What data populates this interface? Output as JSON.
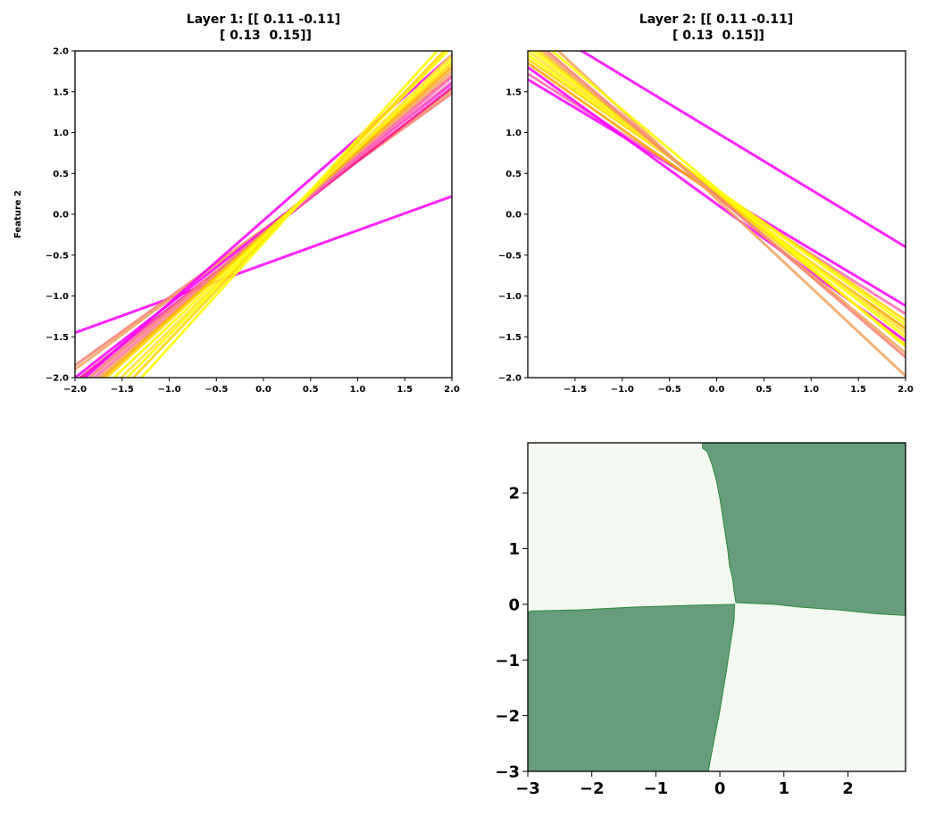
{
  "chart_data": [
    {
      "type": "line",
      "title_line1": "Layer 1: [[ 0.11 -0.11]",
      "title_line2": " [ 0.13  0.15]]",
      "xlabel": "",
      "ylabel": "Feature 2",
      "xlim": [
        -2,
        2
      ],
      "ylim": [
        -2,
        2
      ],
      "xticks": [
        "−2.0",
        "−1.5",
        "−1.0",
        "−0.5",
        "0.0",
        "0.5",
        "1.0",
        "1.5",
        "2.0"
      ],
      "xtick_values": [
        -2,
        -1.5,
        -1,
        -0.5,
        0,
        0.5,
        1,
        1.5,
        2
      ],
      "yticks": [
        "−2.0",
        "−1.5",
        "−1.0",
        "−0.5",
        "0.0",
        "0.5",
        "1.0",
        "1.5",
        "2.0"
      ],
      "ytick_values": [
        -2,
        -1.5,
        -1,
        -0.5,
        0,
        0.5,
        1,
        1.5,
        2
      ],
      "grid": false,
      "lines": [
        {
          "color": "#ff00ff",
          "y_at_xmin": -1.45,
          "y_at_xmax": 0.22
        },
        {
          "color": "#fa8072",
          "y_at_xmin": -1.85,
          "y_at_xmax": 1.48
        },
        {
          "color": "#f4a460",
          "y_at_xmin": -1.9,
          "y_at_xmax": 1.52
        },
        {
          "color": "#ff1493",
          "y_at_xmin": -2.05,
          "y_at_xmax": 1.55
        },
        {
          "color": "#ff00ff",
          "y_at_xmin": -2.0,
          "y_at_xmax": 1.6
        },
        {
          "color": "#ff69b4",
          "y_at_xmin": -2.1,
          "y_at_xmax": 1.62
        },
        {
          "color": "#ff00ff",
          "y_at_xmin": -2.1,
          "y_at_xmax": 1.95
        },
        {
          "color": "#fa8072",
          "y_at_xmin": -2.15,
          "y_at_xmax": 1.7
        },
        {
          "color": "#ff69b4",
          "y_at_xmin": -2.2,
          "y_at_xmax": 1.68
        },
        {
          "color": "#f4a460",
          "y_at_xmin": -2.25,
          "y_at_xmax": 1.75
        },
        {
          "color": "#ffa500",
          "y_at_xmin": -2.3,
          "y_at_xmax": 1.8
        },
        {
          "color": "#ffd700",
          "y_at_xmin": -2.35,
          "y_at_xmax": 1.85
        },
        {
          "color": "#ffff00",
          "y_at_xmin": -2.45,
          "y_at_xmax": 1.9
        },
        {
          "color": "#ffe135",
          "y_at_xmin": -2.55,
          "y_at_xmax": 1.95
        },
        {
          "color": "#ffff00",
          "y_at_xmin": -2.65,
          "y_at_xmax": 2.05
        },
        {
          "color": "#ffd700",
          "y_at_xmin": -2.75,
          "y_at_xmax": 2.1
        },
        {
          "color": "#ffff00",
          "y_at_xmin": -2.9,
          "y_at_xmax": 2.2
        }
      ]
    },
    {
      "type": "line",
      "title_line1": "Layer 2: [[ 0.11 -0.11]",
      "title_line2": " [ 0.13  0.15]]",
      "xlabel": "",
      "ylabel": "",
      "xlim": [
        -2,
        2
      ],
      "ylim": [
        -2,
        2
      ],
      "xticks": [
        "−1.5",
        "−1.0",
        "−0.5",
        "0.0",
        "0.5",
        "1.0",
        "1.5",
        "2.0"
      ],
      "xtick_values": [
        -1.5,
        -1,
        -0.5,
        0,
        0.5,
        1,
        1.5,
        2
      ],
      "yticks": [
        "−2.0",
        "−1.5",
        "−1.0",
        "−0.5",
        "0.0",
        "0.5",
        "1.0",
        "1.5"
      ],
      "ytick_values": [
        -2,
        -1.5,
        -1,
        -0.5,
        0,
        0.5,
        1,
        1.5
      ],
      "grid": false,
      "lines": [
        {
          "color": "#ff00ff",
          "y_at_xmin": 2.4,
          "y_at_xmax": -0.4
        },
        {
          "color": "#ff00ff",
          "y_at_xmin": 1.65,
          "y_at_xmax": -1.12
        },
        {
          "color": "#ff69b4",
          "y_at_xmin": 1.72,
          "y_at_xmax": -1.22
        },
        {
          "color": "#ff00ff",
          "y_at_xmin": 1.8,
          "y_at_xmax": -1.55
        },
        {
          "color": "#ffa500",
          "y_at_xmin": 1.85,
          "y_at_xmax": -1.4
        },
        {
          "color": "#ffd700",
          "y_at_xmin": 1.9,
          "y_at_xmax": -1.3
        },
        {
          "color": "#ffff00",
          "y_at_xmin": 1.95,
          "y_at_xmax": -1.35
        },
        {
          "color": "#ffe135",
          "y_at_xmin": 2.0,
          "y_at_xmax": -1.45
        },
        {
          "color": "#ffff00",
          "y_at_xmin": 2.05,
          "y_at_xmax": -1.5
        },
        {
          "color": "#ffd700",
          "y_at_xmin": 2.1,
          "y_at_xmax": -1.6
        },
        {
          "color": "#f4a460",
          "y_at_xmin": 2.15,
          "y_at_xmax": -1.7
        },
        {
          "color": "#fa8072",
          "y_at_xmin": 2.2,
          "y_at_xmax": -1.75
        },
        {
          "color": "#f4a460",
          "y_at_xmin": 2.35,
          "y_at_xmax": -1.98
        },
        {
          "color": "#ffff00",
          "y_at_xmin": 2.25,
          "y_at_xmax": -1.62
        }
      ]
    },
    {
      "type": "heatmap",
      "title": "",
      "xlabel": "",
      "ylabel": "",
      "xlim": [
        -3,
        2.9
      ],
      "ylim": [
        -3,
        2.9
      ],
      "xticks": [
        "−3",
        "−2",
        "−1",
        "0",
        "1",
        "2"
      ],
      "xtick_values": [
        -3,
        -2,
        -1,
        0,
        1,
        2
      ],
      "yticks": [
        "−3",
        "−2",
        "−1",
        "0",
        "1",
        "2"
      ],
      "ytick_values": [
        -3,
        -2,
        -1,
        0,
        1,
        2
      ],
      "grid": false,
      "color_low": "#f3f8f1",
      "color_high": "#679d7b",
      "boundary_color": "#2e8b3a",
      "top_right_region": [
        [
          -0.27,
          2.9
        ],
        [
          2.9,
          2.9
        ],
        [
          2.9,
          -0.2
        ],
        [
          2.45,
          -0.17
        ],
        [
          1.85,
          -0.1
        ],
        [
          1.25,
          -0.05
        ],
        [
          0.85,
          0.0
        ],
        [
          0.25,
          0.03
        ],
        [
          0.22,
          0.25
        ],
        [
          0.2,
          0.45
        ],
        [
          0.15,
          0.7
        ],
        [
          0.12,
          1.0
        ],
        [
          0.08,
          1.3
        ],
        [
          0.04,
          1.6
        ],
        [
          0.0,
          1.9
        ],
        [
          -0.05,
          2.2
        ],
        [
          -0.12,
          2.5
        ],
        [
          -0.2,
          2.75
        ],
        [
          -0.27,
          2.8
        ]
      ],
      "bottom_left_region": [
        [
          -3.0,
          -0.15
        ],
        [
          -2.95,
          -0.12
        ],
        [
          -2.2,
          -0.1
        ],
        [
          -1.35,
          -0.05
        ],
        [
          -0.5,
          -0.02
        ],
        [
          0.23,
          0.0
        ],
        [
          0.22,
          -0.3
        ],
        [
          0.18,
          -0.6
        ],
        [
          0.14,
          -0.9
        ],
        [
          0.1,
          -1.2
        ],
        [
          0.05,
          -1.55
        ],
        [
          0.0,
          -1.9
        ],
        [
          -0.05,
          -2.2
        ],
        [
          -0.1,
          -2.5
        ],
        [
          -0.15,
          -2.8
        ],
        [
          -0.18,
          -3.0
        ],
        [
          -3.0,
          -3.0
        ]
      ]
    }
  ]
}
